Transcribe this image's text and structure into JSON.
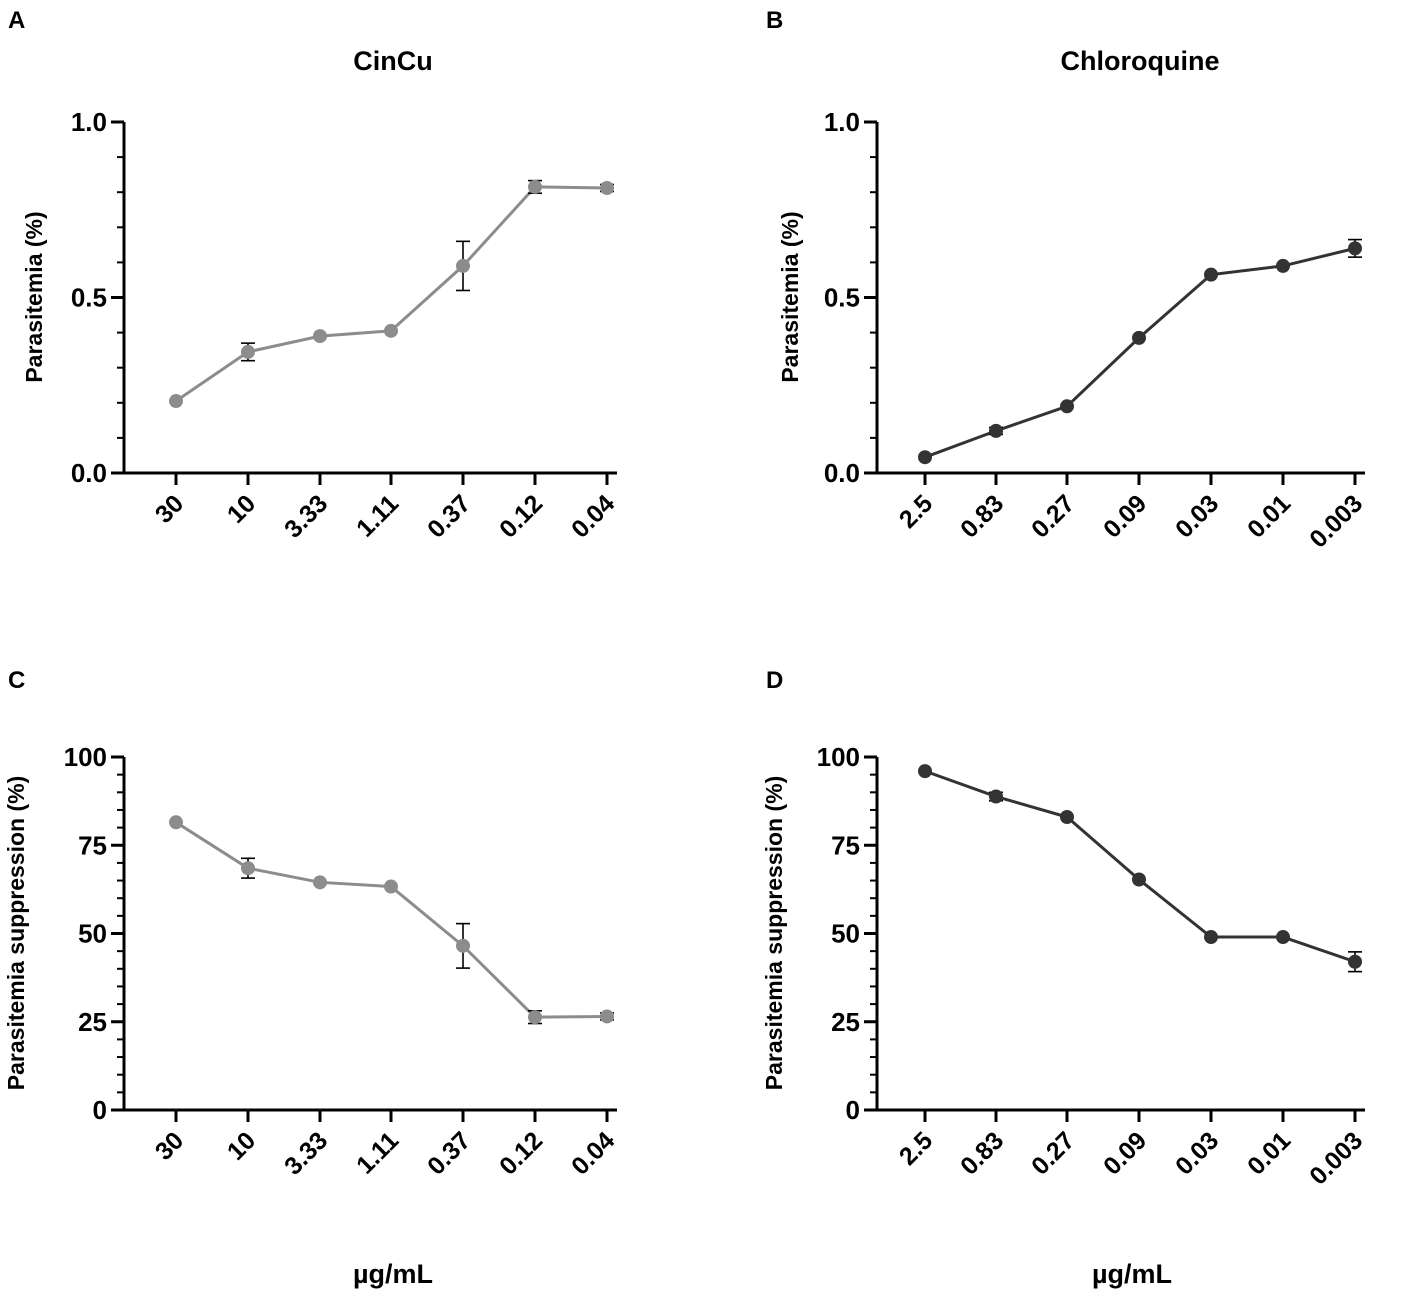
{
  "panels": {
    "A": "A",
    "B": "B",
    "C": "C",
    "D": "D"
  },
  "colors": {
    "cincu": "#8c8c8c",
    "chloroquine": "#333333",
    "axis": "#000000"
  },
  "chart_data": [
    {
      "panel": "A",
      "type": "line",
      "title": "CinCu",
      "xlabel": "",
      "ylabel": "Parasitemia (%)",
      "categories": [
        "30",
        "10",
        "3.33",
        "1.11",
        "0.37",
        "0.12",
        "0.04"
      ],
      "values": [
        0.205,
        0.345,
        0.39,
        0.405,
        0.59,
        0.815,
        0.812
      ],
      "errors": [
        0.0,
        0.025,
        0.0,
        0.0,
        0.07,
        0.018,
        0.01
      ],
      "ylim": [
        0,
        1.0
      ],
      "yticks": [
        0.0,
        0.5,
        1.0
      ],
      "ytick_labels": [
        "0.0",
        "0.5",
        "1.0"
      ],
      "minor_step": 0.1,
      "series_color": "cincu"
    },
    {
      "panel": "B",
      "type": "line",
      "title": "Chloroquine",
      "xlabel": "",
      "ylabel": "Parasitemia (%)",
      "categories": [
        "2.5",
        "0.83",
        "0.27",
        "0.09",
        "0.03",
        "0.01",
        "0.003"
      ],
      "values": [
        0.045,
        0.12,
        0.19,
        0.385,
        0.565,
        0.59,
        0.64
      ],
      "errors": [
        0.0,
        0.01,
        0.0,
        0.0,
        0.0,
        0.0,
        0.025
      ],
      "ylim": [
        0,
        1.0
      ],
      "yticks": [
        0.0,
        0.5,
        1.0
      ],
      "ytick_labels": [
        "0.0",
        "0.5",
        "1.0"
      ],
      "minor_step": 0.1,
      "series_color": "chloroquine"
    },
    {
      "panel": "C",
      "type": "line",
      "title": "",
      "xlabel": "µg/mL",
      "ylabel": "Parasitemia suppression (%)",
      "categories": [
        "30",
        "10",
        "3.33",
        "1.11",
        "0.37",
        "0.12",
        "0.04"
      ],
      "values": [
        81.5,
        68.5,
        64.5,
        63.3,
        46.5,
        26.3,
        26.5
      ],
      "errors": [
        0.0,
        2.8,
        0.0,
        0.0,
        6.3,
        1.8,
        1.0
      ],
      "ylim": [
        0,
        100
      ],
      "yticks": [
        0,
        25,
        50,
        75,
        100
      ],
      "ytick_labels": [
        "0",
        "25",
        "50",
        "75",
        "100"
      ],
      "minor_step": 5,
      "series_color": "cincu"
    },
    {
      "panel": "D",
      "type": "line",
      "title": "",
      "xlabel": "µg/mL",
      "ylabel": "Parasitemia suppression (%)",
      "categories": [
        "2.5",
        "0.83",
        "0.27",
        "0.09",
        "0.03",
        "0.01",
        "0.003"
      ],
      "values": [
        96.0,
        88.8,
        83.0,
        65.3,
        49.0,
        49.0,
        42.0
      ],
      "errors": [
        0.0,
        1.2,
        0.0,
        0.0,
        0.0,
        0.0,
        2.8
      ],
      "ylim": [
        0,
        100
      ],
      "yticks": [
        0,
        25,
        50,
        75,
        100
      ],
      "ytick_labels": [
        "0",
        "25",
        "50",
        "75",
        "100"
      ],
      "minor_step": 5,
      "series_color": "chloroquine"
    }
  ]
}
